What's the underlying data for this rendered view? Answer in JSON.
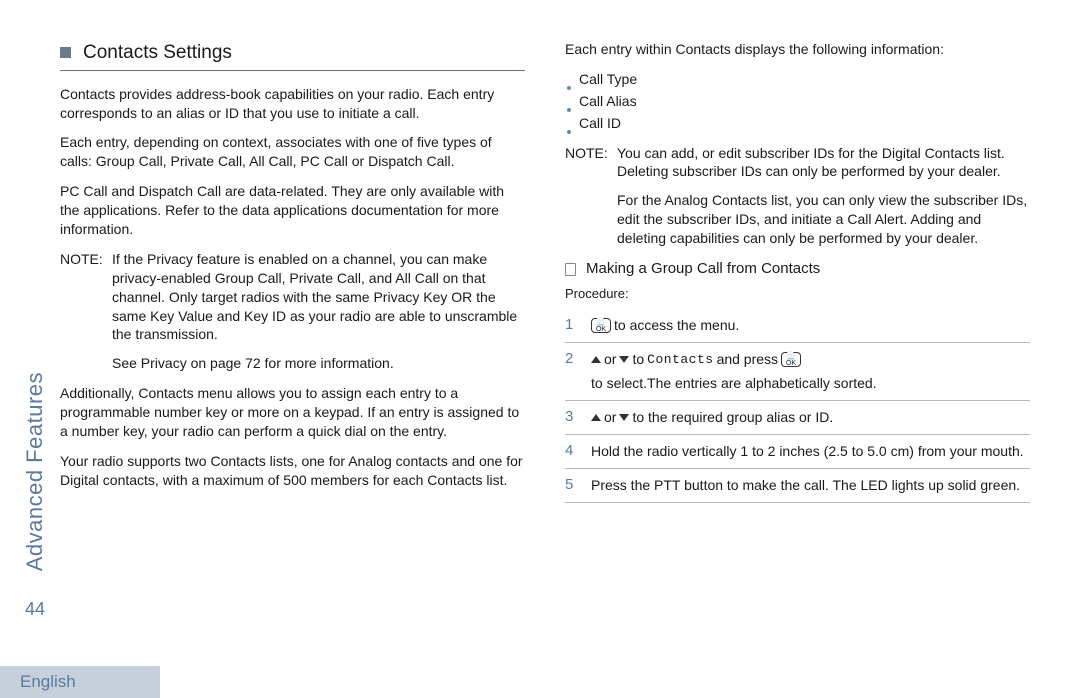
{
  "rail": {
    "label": "Advanced Features",
    "page": "44"
  },
  "footer": {
    "lang": "English"
  },
  "left": {
    "heading": "Contacts Settings",
    "p1": "Contacts provides  address-book  capabilities on your radio. Each entry corresponds to an alias or ID that you use to initiate a call.",
    "p2": "Each entry, depending on context, associates with one of five types of calls: Group Call, Private Call, All Call, PC Call or Dispatch Call.",
    "p3": "PC Call and Dispatch Call are data-related. They are only available with the applications. Refer to the data applications documentation for more information.",
    "note": {
      "label": "NOTE:",
      "body1": "If the Privacy feature is enabled on a channel, you can make privacy-enabled Group Call, Private Call, and All Call on that channel. Only target radios with the same Privacy Key OR the same Key Value and Key ID as your radio are able to unscramble the transmission.",
      "body2": "See Privacy  on page 72 for more information."
    },
    "p4": "Additionally, Contacts menu allows you to assign each entry to a programmable number key or more on a keypad. If an entry is assigned to a number key, your radio can perform a quick dial on the entry.",
    "p5": "Your radio supports two Contacts lists, one for Analog contacts and one for Digital contacts, with a maximum of 500 members for each Contacts list."
  },
  "right": {
    "intro": "Each entry within Contacts displays the following information:",
    "items": [
      "Call Type",
      "Call Alias",
      "Call ID"
    ],
    "note": {
      "label": "NOTE:",
      "body1": "You can add, or edit subscriber IDs for the Digital Contacts list. Deleting subscriber IDs can only be performed by your dealer.",
      "body2": "For the Analog Contacts list, you can only view the subscriber IDs, edit the subscriber IDs, and initiate a Call Alert. Adding and deleting capabilities can only be performed by your dealer."
    },
    "subheading": "Making a Group Call from Contacts",
    "procedure_label": "Procedure:",
    "steps": {
      "s1": {
        "num": "1",
        "tail": " to access the menu."
      },
      "s2": {
        "num": "2",
        "mid": " to ",
        "contacts": "Contacts",
        "mid2": " and press ",
        "tail": " to select.The entries are alphabetically sorted."
      },
      "s3": {
        "num": "3",
        "tail": " to the required group alias or ID."
      },
      "s4": {
        "num": "4",
        "body": "Hold the radio vertically 1 to 2 inches (2.5 to 5.0 cm) from your mouth."
      },
      "s5": {
        "num": "5",
        "body": "Press the PTT button to make the call. The LED lights up solid green."
      }
    },
    "or": " or "
  },
  "colors": {
    "accent": "#5b7a9e",
    "bullet": "#6b7a8a",
    "rule": "#b8b8b8",
    "footer_bg": "#c5d0db",
    "text": "#1a1a1a"
  }
}
